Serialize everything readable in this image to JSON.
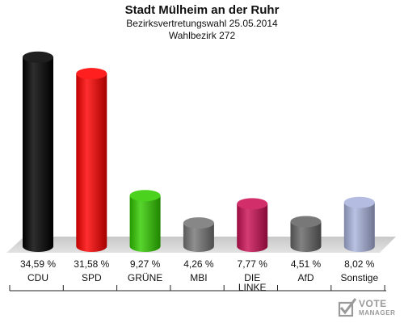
{
  "header": {
    "title": "Stadt Mülheim an der Ruhr",
    "subtitle": "Bezirksvertretungswahl 25.05.2014",
    "district": "Wahlbezirk 272"
  },
  "logo": {
    "line1": "VOTE",
    "line2": "MANAGER"
  },
  "colors": {
    "CDU": "#000000",
    "SPD": "#ff0000",
    "GRÜNE": "#33cc00",
    "MBI": "#777777",
    "DIE LINKE": "#cc1155",
    "AfD": "#666666",
    "Sonstige": "#aab4dd"
  },
  "chart_data": {
    "type": "bar",
    "categories": [
      "CDU",
      "SPD",
      "GRÜNE",
      "MBI",
      "DIE LINKE",
      "AfD",
      "Sonstige"
    ],
    "category_lines": [
      [
        "CDU"
      ],
      [
        "SPD"
      ],
      [
        "GRÜNE"
      ],
      [
        "MBI"
      ],
      [
        "DIE",
        "LINKE"
      ],
      [
        "AfD"
      ],
      [
        "Sonstige"
      ]
    ],
    "values": [
      34.59,
      31.58,
      9.27,
      4.26,
      7.77,
      4.51,
      8.02
    ],
    "value_labels": [
      "34,59 %",
      "31,58 %",
      "9,27 %",
      "4,26 %",
      "7,77 %",
      "4,51 %",
      "8,02 %"
    ],
    "unit": "%",
    "ylim": [
      0,
      35
    ]
  }
}
